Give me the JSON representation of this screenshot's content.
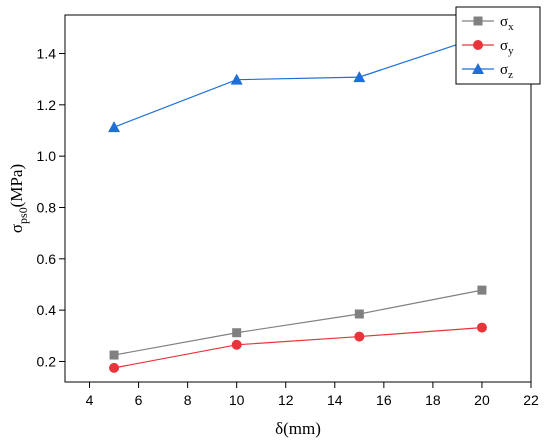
{
  "chart_data": {
    "type": "line",
    "x": [
      5,
      10,
      15,
      20
    ],
    "xlim": [
      3,
      22
    ],
    "ylim": [
      0.12,
      1.55
    ],
    "xticks": [
      4,
      6,
      8,
      10,
      12,
      14,
      16,
      18,
      20,
      22
    ],
    "yticks": [
      0.2,
      0.4,
      0.6,
      0.8,
      1.0,
      1.2,
      1.4
    ],
    "xtick_labels": [
      "4",
      "6",
      "8",
      "10",
      "12",
      "14",
      "16",
      "18",
      "20",
      "22"
    ],
    "ytick_labels": [
      "0.2",
      "0.4",
      "0.6",
      "0.8",
      "1.0",
      "1.2",
      "1.4"
    ],
    "xlabel": {
      "main": "δ",
      "rest": "(mm)"
    },
    "ylabel": {
      "main": "σ",
      "sub": "ps0",
      "rest": "(MPa)"
    },
    "grid": false,
    "legend_position": "top-right",
    "series": [
      {
        "name": "σ",
        "sub": "x",
        "color": "#808080",
        "marker": "square",
        "values": [
          0.225,
          0.312,
          0.385,
          0.478
        ]
      },
      {
        "name": "σ",
        "sub": "y",
        "color": "#e8343a",
        "marker": "circle",
        "values": [
          0.175,
          0.265,
          0.297,
          0.332
        ]
      },
      {
        "name": "σ",
        "sub": "z",
        "color": "#1f6fd6",
        "marker": "triangle",
        "values": [
          1.113,
          1.298,
          1.308,
          1.467
        ]
      }
    ]
  }
}
